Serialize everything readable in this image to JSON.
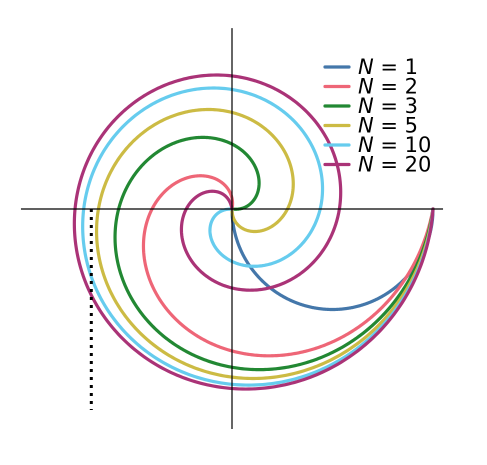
{
  "chart_data": {
    "type": "line",
    "title": "",
    "xlabel": "",
    "ylabel": "",
    "xlim": [
      -1.05,
      1.05
    ],
    "ylim": [
      -1.05,
      0.85
    ],
    "grid": false,
    "legend_position": "top-right",
    "axes": "origin crosshair (spines through zero), no ticks or tick labels",
    "reference_line": {
      "style": "dotted",
      "x": -0.7,
      "y_from": 0,
      "y_to": -1.0
    },
    "series": [
      {
        "name": "N = 1",
        "var": "N",
        "value": "1",
        "color": "#4477aa",
        "x": [
          1.0,
          0.951,
          0.809,
          0.588,
          0.309,
          0.0
        ],
        "y": [
          0.0,
          -0.309,
          -0.588,
          -0.809,
          -0.951,
          -1.0
        ]
      },
      {
        "name": "N = 2",
        "var": "N",
        "value": "2",
        "color": "#ee6677",
        "x": [
          1.0,
          0.809,
          0.309,
          -0.309,
          -0.809,
          -1.0
        ],
        "y": [
          0.0,
          -0.588,
          -0.951,
          -0.951,
          -0.588,
          0.0
        ]
      },
      {
        "name": "N = 3",
        "var": "N",
        "value": "3",
        "color": "#228833",
        "x": [
          1.0,
          0.588,
          -0.309,
          -0.951,
          -0.809,
          0.0
        ],
        "y": [
          0.0,
          -0.809,
          -0.951,
          -0.309,
          0.588,
          1.0
        ]
      },
      {
        "name": "N = 5",
        "var": "N",
        "value": "5",
        "color": "#ccbb44",
        "x": [
          1.0,
          0.0,
          -1.0,
          0.0,
          1.0,
          0.0
        ],
        "y": [
          0.0,
          -1.0,
          0.0,
          1.0,
          0.0,
          -1.0
        ]
      },
      {
        "name": "N = 10",
        "var": "N",
        "value": "10",
        "color": "#66ccee",
        "x": [
          1.0,
          -0.951,
          0.0,
          0.951,
          -1.0
        ],
        "y": [
          0.0,
          -0.309,
          1.0,
          -0.309,
          0.0
        ]
      },
      {
        "name": "N = 20",
        "var": "N",
        "value": "20",
        "color": "#aa3377",
        "x": [
          1.0,
          0.0,
          -1.0,
          0.0,
          1.0
        ],
        "y": [
          0.0,
          -1.0,
          0.0,
          1.0,
          0.0
        ]
      }
    ]
  }
}
